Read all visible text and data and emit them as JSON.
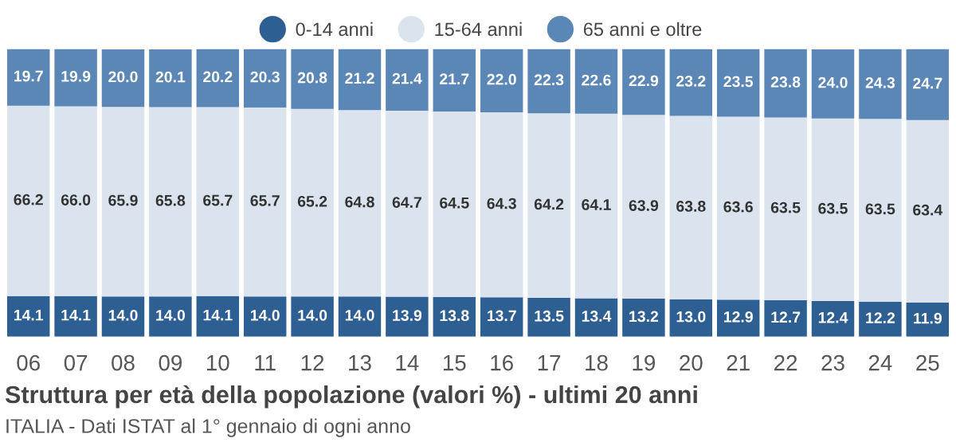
{
  "chart_data": {
    "type": "bar",
    "stacked": true,
    "title": "Struttura per età della popolazione (valori %) - ultimi 20 anni",
    "annotations": [
      "ITALIA - Dati ISTAT al 1° gennaio di ogni anno"
    ],
    "categories": [
      "06",
      "07",
      "08",
      "09",
      "10",
      "11",
      "12",
      "13",
      "14",
      "15",
      "16",
      "17",
      "18",
      "19",
      "20",
      "21",
      "22",
      "23",
      "24",
      "25"
    ],
    "series": [
      {
        "name": "0-14 anni",
        "color": "#2e5f93",
        "values": [
          14.1,
          14.1,
          14.0,
          14.0,
          14.1,
          14.0,
          14.0,
          14.0,
          13.9,
          13.8,
          13.7,
          13.5,
          13.4,
          13.2,
          13.0,
          12.9,
          12.7,
          12.4,
          12.2,
          11.9
        ],
        "value_labels": [
          "14.1",
          "14.1",
          "14.0",
          "14.0",
          "14.1",
          "14.0",
          "14.0",
          "14.0",
          "13.9",
          "13.8",
          "13.7",
          "13.5",
          "13.4",
          "13.2",
          "13.0",
          "12.9",
          "12.7",
          "12.4",
          "12.2",
          "11.9"
        ]
      },
      {
        "name": "15-64 anni",
        "color": "#dae3ee",
        "values": [
          66.2,
          66.0,
          65.9,
          65.8,
          65.7,
          65.7,
          65.2,
          64.8,
          64.7,
          64.5,
          64.3,
          64.2,
          64.1,
          63.9,
          63.8,
          63.6,
          63.5,
          63.5,
          63.5,
          63.4
        ],
        "value_labels": [
          "66.2",
          "66.0",
          "65.9",
          "65.8",
          "65.7",
          "65.7",
          "65.2",
          "64.8",
          "64.7",
          "64.5",
          "64.3",
          "64.2",
          "64.1",
          "63.9",
          "63.8",
          "63.6",
          "63.5",
          "63.5",
          "63.5",
          "63.4"
        ]
      },
      {
        "name": "65 anni e oltre",
        "color": "#5b87b6",
        "values": [
          19.7,
          19.9,
          20.0,
          20.1,
          20.2,
          20.3,
          20.8,
          21.2,
          21.4,
          21.7,
          22.0,
          22.3,
          22.6,
          22.9,
          23.2,
          23.5,
          23.8,
          24.0,
          24.3,
          24.7
        ],
        "value_labels": [
          "19.7",
          "19.9",
          "20.0",
          "20.1",
          "20.2",
          "20.3",
          "20.8",
          "21.2",
          "21.4",
          "21.7",
          "22.0",
          "22.3",
          "22.6",
          "22.9",
          "23.2",
          "23.5",
          "23.8",
          "24.0",
          "24.3",
          "24.7"
        ]
      }
    ],
    "ylim": [
      0,
      100
    ],
    "tick_labels": "x",
    "legend": "top",
    "grid": false
  }
}
